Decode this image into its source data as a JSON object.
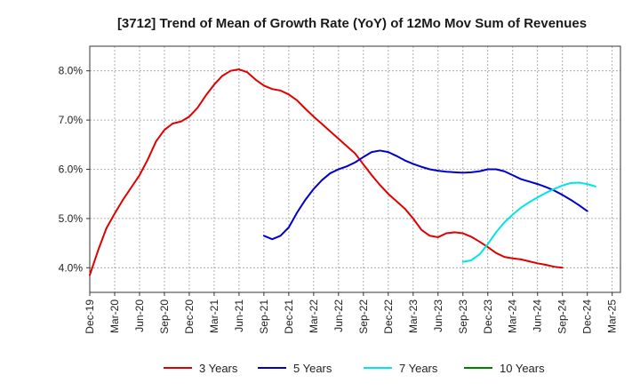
{
  "chart_data": {
    "type": "line",
    "title": "[3712]  Trend of Mean of Growth Rate (YoY) of 12Mo Mov Sum of Revenues",
    "xlabel": "",
    "ylabel": "",
    "x_tick_labels": [
      "Dec-19",
      "Mar-20",
      "Jun-20",
      "Sep-20",
      "Dec-20",
      "Mar-21",
      "Jun-21",
      "Sep-21",
      "Dec-21",
      "Mar-22",
      "Jun-22",
      "Sep-22",
      "Dec-22",
      "Mar-23",
      "Jun-23",
      "Sep-23",
      "Dec-23",
      "Mar-24",
      "Jun-24",
      "Sep-24",
      "Dec-24",
      "Mar-25"
    ],
    "y_ticks": [
      4.0,
      5.0,
      6.0,
      7.0,
      8.0
    ],
    "y_tick_labels": [
      "4.0%",
      "5.0%",
      "6.0%",
      "7.0%",
      "8.0%"
    ],
    "ylim": [
      3.5,
      8.5
    ],
    "grid": true,
    "legend_position": "bottom",
    "series": [
      {
        "name": "3 Years",
        "color": "#e00000",
        "start_index": 0,
        "values": [
          3.85,
          4.35,
          4.8,
          5.1,
          5.38,
          5.63,
          5.88,
          6.2,
          6.57,
          6.8,
          6.93,
          6.97,
          7.07,
          7.25,
          7.5,
          7.72,
          7.9,
          8.0,
          8.03,
          7.97,
          7.82,
          7.7,
          7.63,
          7.6,
          7.52,
          7.4,
          7.23,
          7.07,
          6.92,
          6.77,
          6.62,
          6.47,
          6.32,
          6.1,
          5.88,
          5.68,
          5.5,
          5.35,
          5.2,
          5.0,
          4.77,
          4.65,
          4.62,
          4.7,
          4.72,
          4.7,
          4.63,
          4.53,
          4.42,
          4.3,
          4.22,
          4.19,
          4.17,
          4.13,
          4.09,
          4.06,
          4.02,
          4.0
        ]
      },
      {
        "name": "5 Years",
        "color": "#0000cc",
        "start_index": 21,
        "values": [
          4.65,
          4.58,
          4.65,
          4.82,
          5.12,
          5.38,
          5.6,
          5.78,
          5.92,
          6.0,
          6.06,
          6.14,
          6.25,
          6.35,
          6.38,
          6.35,
          6.27,
          6.18,
          6.11,
          6.05,
          6.0,
          5.97,
          5.95,
          5.94,
          5.93,
          5.94,
          5.96,
          6.0,
          6.0,
          5.96,
          5.88,
          5.8,
          5.75,
          5.7,
          5.64,
          5.57,
          5.48,
          5.38,
          5.27,
          5.15
        ]
      },
      {
        "name": "7 Years",
        "color": "#00e5e5",
        "start_index": 45,
        "values": [
          4.12,
          4.15,
          4.27,
          4.48,
          4.72,
          4.92,
          5.08,
          5.22,
          5.33,
          5.43,
          5.52,
          5.6,
          5.67,
          5.72,
          5.73,
          5.7,
          5.65
        ]
      },
      {
        "name": "10 Years",
        "color": "#008000",
        "start_index": 0,
        "values": []
      }
    ]
  }
}
